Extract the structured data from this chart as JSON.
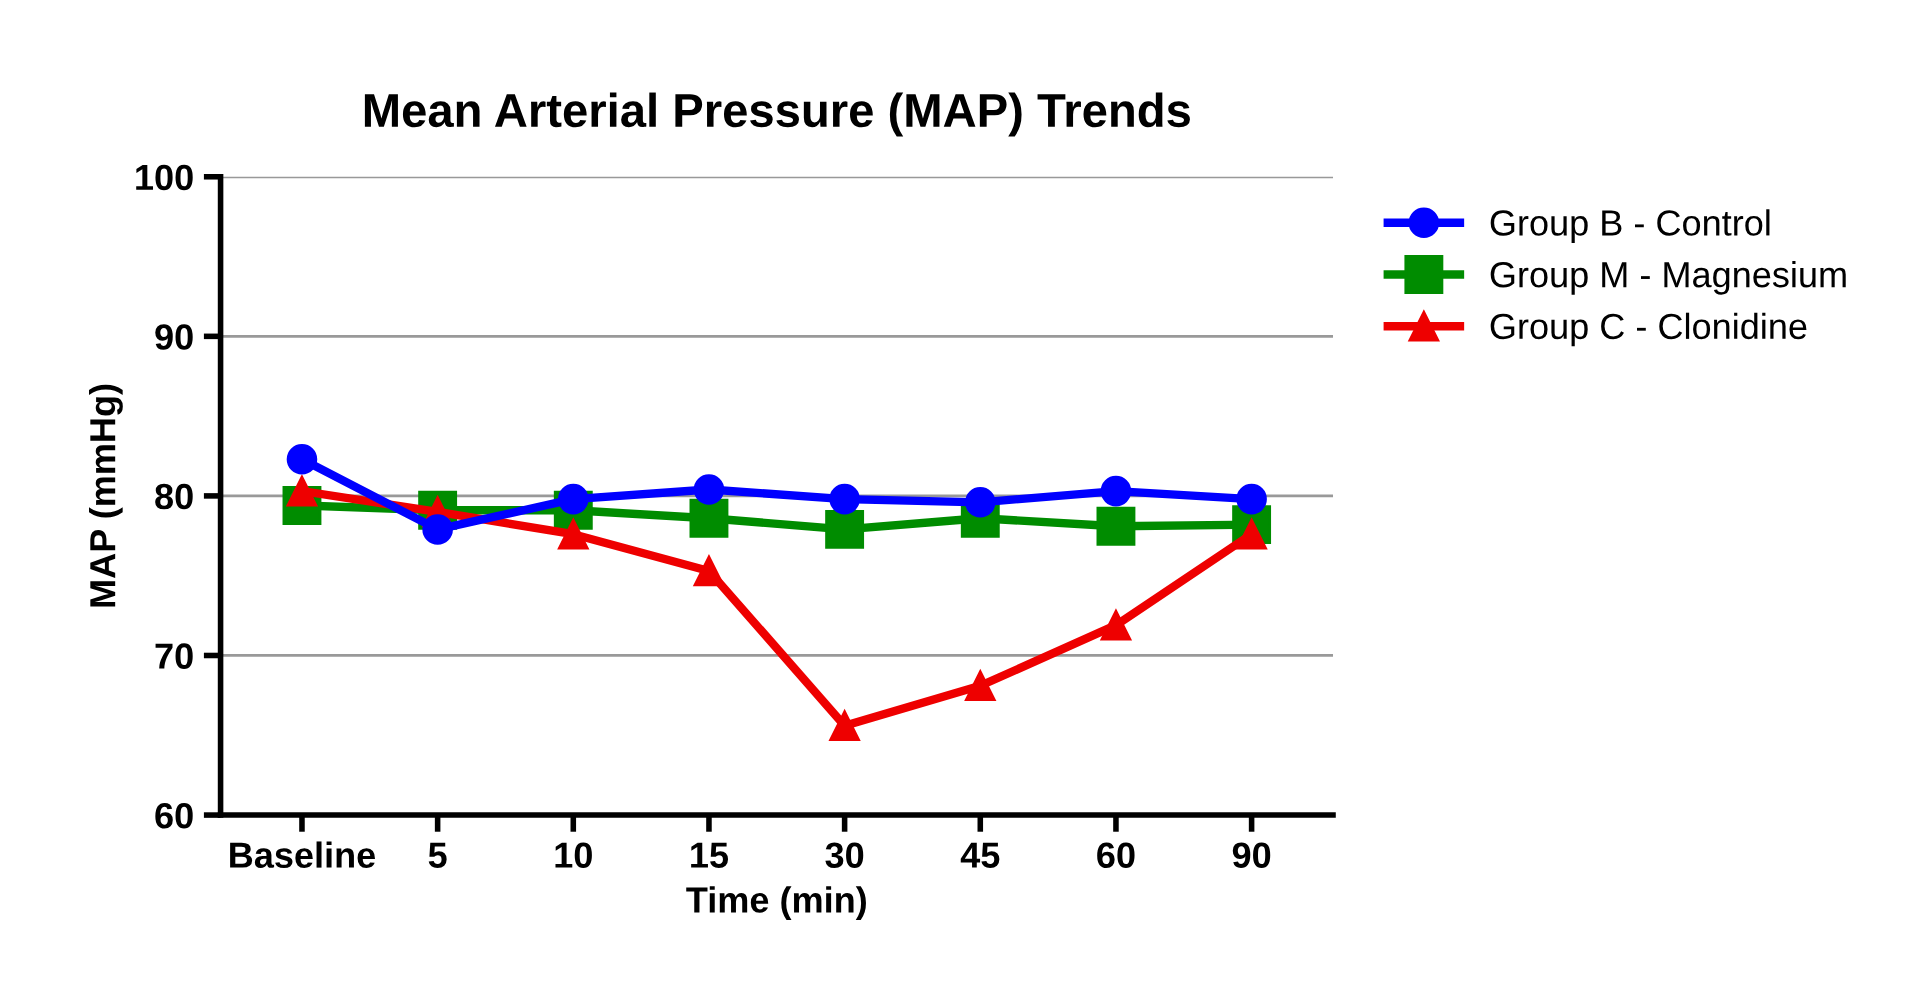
{
  "chart_data": {
    "type": "line",
    "title": "Mean Arterial Pressure (MAP) Trends",
    "xlabel": "Time (min)",
    "ylabel": "MAP (mmHg)",
    "categories": [
      "Baseline",
      "5",
      "10",
      "15",
      "30",
      "45",
      "60",
      "90"
    ],
    "series": [
      {
        "name": "Group B - Control",
        "color": "#0000ff",
        "marker": "circle",
        "values": [
          82.3,
          77.9,
          79.8,
          80.4,
          79.8,
          79.6,
          80.3,
          79.8
        ]
      },
      {
        "name": "Group M - Magnesium",
        "color": "#008c00",
        "marker": "square",
        "values": [
          79.4,
          79.1,
          79.1,
          78.6,
          77.9,
          78.6,
          78.1,
          78.2
        ]
      },
      {
        "name": "Group C - Clonidine",
        "color": "#ee0000",
        "marker": "triangle",
        "values": [
          80.3,
          79.0,
          77.6,
          75.3,
          65.6,
          68.1,
          71.9,
          77.6
        ]
      }
    ],
    "ylim": [
      60,
      100
    ],
    "yticks": [
      60,
      70,
      80,
      90,
      100
    ],
    "grid": "y",
    "legend": "top right",
    "line_style": "solid"
  }
}
